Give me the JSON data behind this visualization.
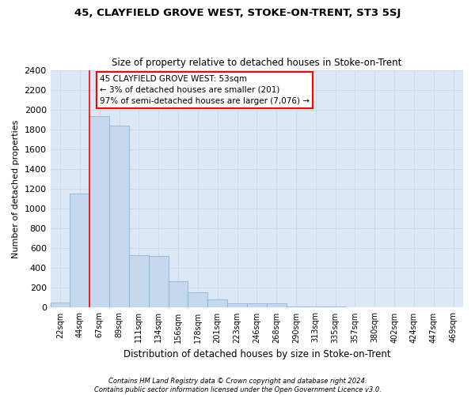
{
  "title1": "45, CLAYFIELD GROVE WEST, STOKE-ON-TRENT, ST3 5SJ",
  "title2": "Size of property relative to detached houses in Stoke-on-Trent",
  "xlabel": "Distribution of detached houses by size in Stoke-on-Trent",
  "ylabel": "Number of detached properties",
  "categories": [
    "22sqm",
    "44sqm",
    "67sqm",
    "89sqm",
    "111sqm",
    "134sqm",
    "156sqm",
    "178sqm",
    "201sqm",
    "223sqm",
    "246sqm",
    "268sqm",
    "290sqm",
    "313sqm",
    "335sqm",
    "357sqm",
    "380sqm",
    "402sqm",
    "424sqm",
    "447sqm",
    "469sqm"
  ],
  "values": [
    50,
    1150,
    1930,
    1840,
    530,
    520,
    265,
    155,
    80,
    45,
    45,
    40,
    15,
    15,
    10,
    0,
    0,
    0,
    0,
    0,
    0
  ],
  "bar_color": "#c5d8ee",
  "bar_edge_color": "#7aafd4",
  "vline_color": "red",
  "vline_x_index": 1,
  "annotation_text": "45 CLAYFIELD GROVE WEST: 53sqm\n← 3% of detached houses are smaller (201)\n97% of semi-detached houses are larger (7,076) →",
  "annotation_box_color": "white",
  "annotation_box_edge_color": "red",
  "ylim": [
    0,
    2400
  ],
  "yticks": [
    0,
    200,
    400,
    600,
    800,
    1000,
    1200,
    1400,
    1600,
    1800,
    2000,
    2200,
    2400
  ],
  "grid_color": "#c8d8e8",
  "bg_color": "#dce8f5",
  "footnote1": "Contains HM Land Registry data © Crown copyright and database right 2024.",
  "footnote2": "Contains public sector information licensed under the Open Government Licence v3.0."
}
